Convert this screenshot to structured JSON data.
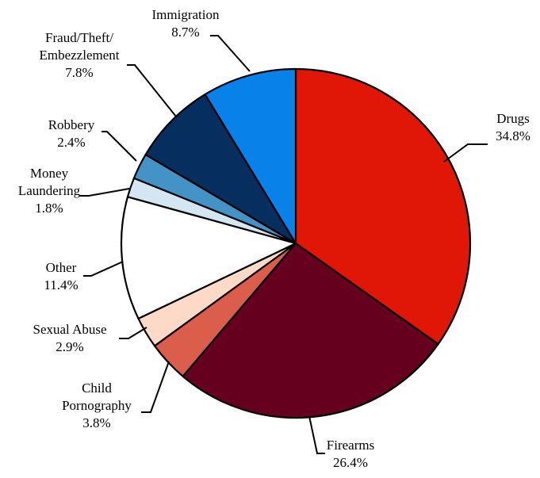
{
  "chart_data": {
    "type": "pie",
    "start_angle_deg": 0,
    "direction": "clockwise",
    "slices": [
      {
        "name": "Drugs",
        "label_lines": [
          "Drugs"
        ],
        "value_label": "34.8%",
        "value": 34.8,
        "color": "#e01606"
      },
      {
        "name": "Firearms",
        "label_lines": [
          "Firearms"
        ],
        "value_label": "26.4%",
        "value": 26.4,
        "color": "#65001f"
      },
      {
        "name": "Child Pornography",
        "label_lines": [
          "Child",
          "Pornography"
        ],
        "value_label": "3.8%",
        "value": 3.8,
        "color": "#db5e4c"
      },
      {
        "name": "Sexual Abuse",
        "label_lines": [
          "Sexual Abuse"
        ],
        "value_label": "2.9%",
        "value": 2.9,
        "color": "#fdd9c8"
      },
      {
        "name": "Other",
        "label_lines": [
          "Other"
        ],
        "value_label": "11.4%",
        "value": 11.4,
        "color": "#ffffff"
      },
      {
        "name": "Money Laundering",
        "label_lines": [
          "Money",
          "Laundering"
        ],
        "value_label": "1.8%",
        "value": 1.8,
        "color": "#d4e6f2"
      },
      {
        "name": "Robbery",
        "label_lines": [
          "Robbery"
        ],
        "value_label": "2.4%",
        "value": 2.4,
        "color": "#4393c6"
      },
      {
        "name": "Fraud/Theft/Embezzlement",
        "label_lines": [
          "Fraud/Theft/",
          "Embezzlement"
        ],
        "value_label": "7.8%",
        "value": 7.8,
        "color": "#062e5f"
      },
      {
        "name": "Immigration",
        "label_lines": [
          "Immigration"
        ],
        "value_label": "8.7%",
        "value": 8.7,
        "color": "#0881e9"
      }
    ]
  }
}
